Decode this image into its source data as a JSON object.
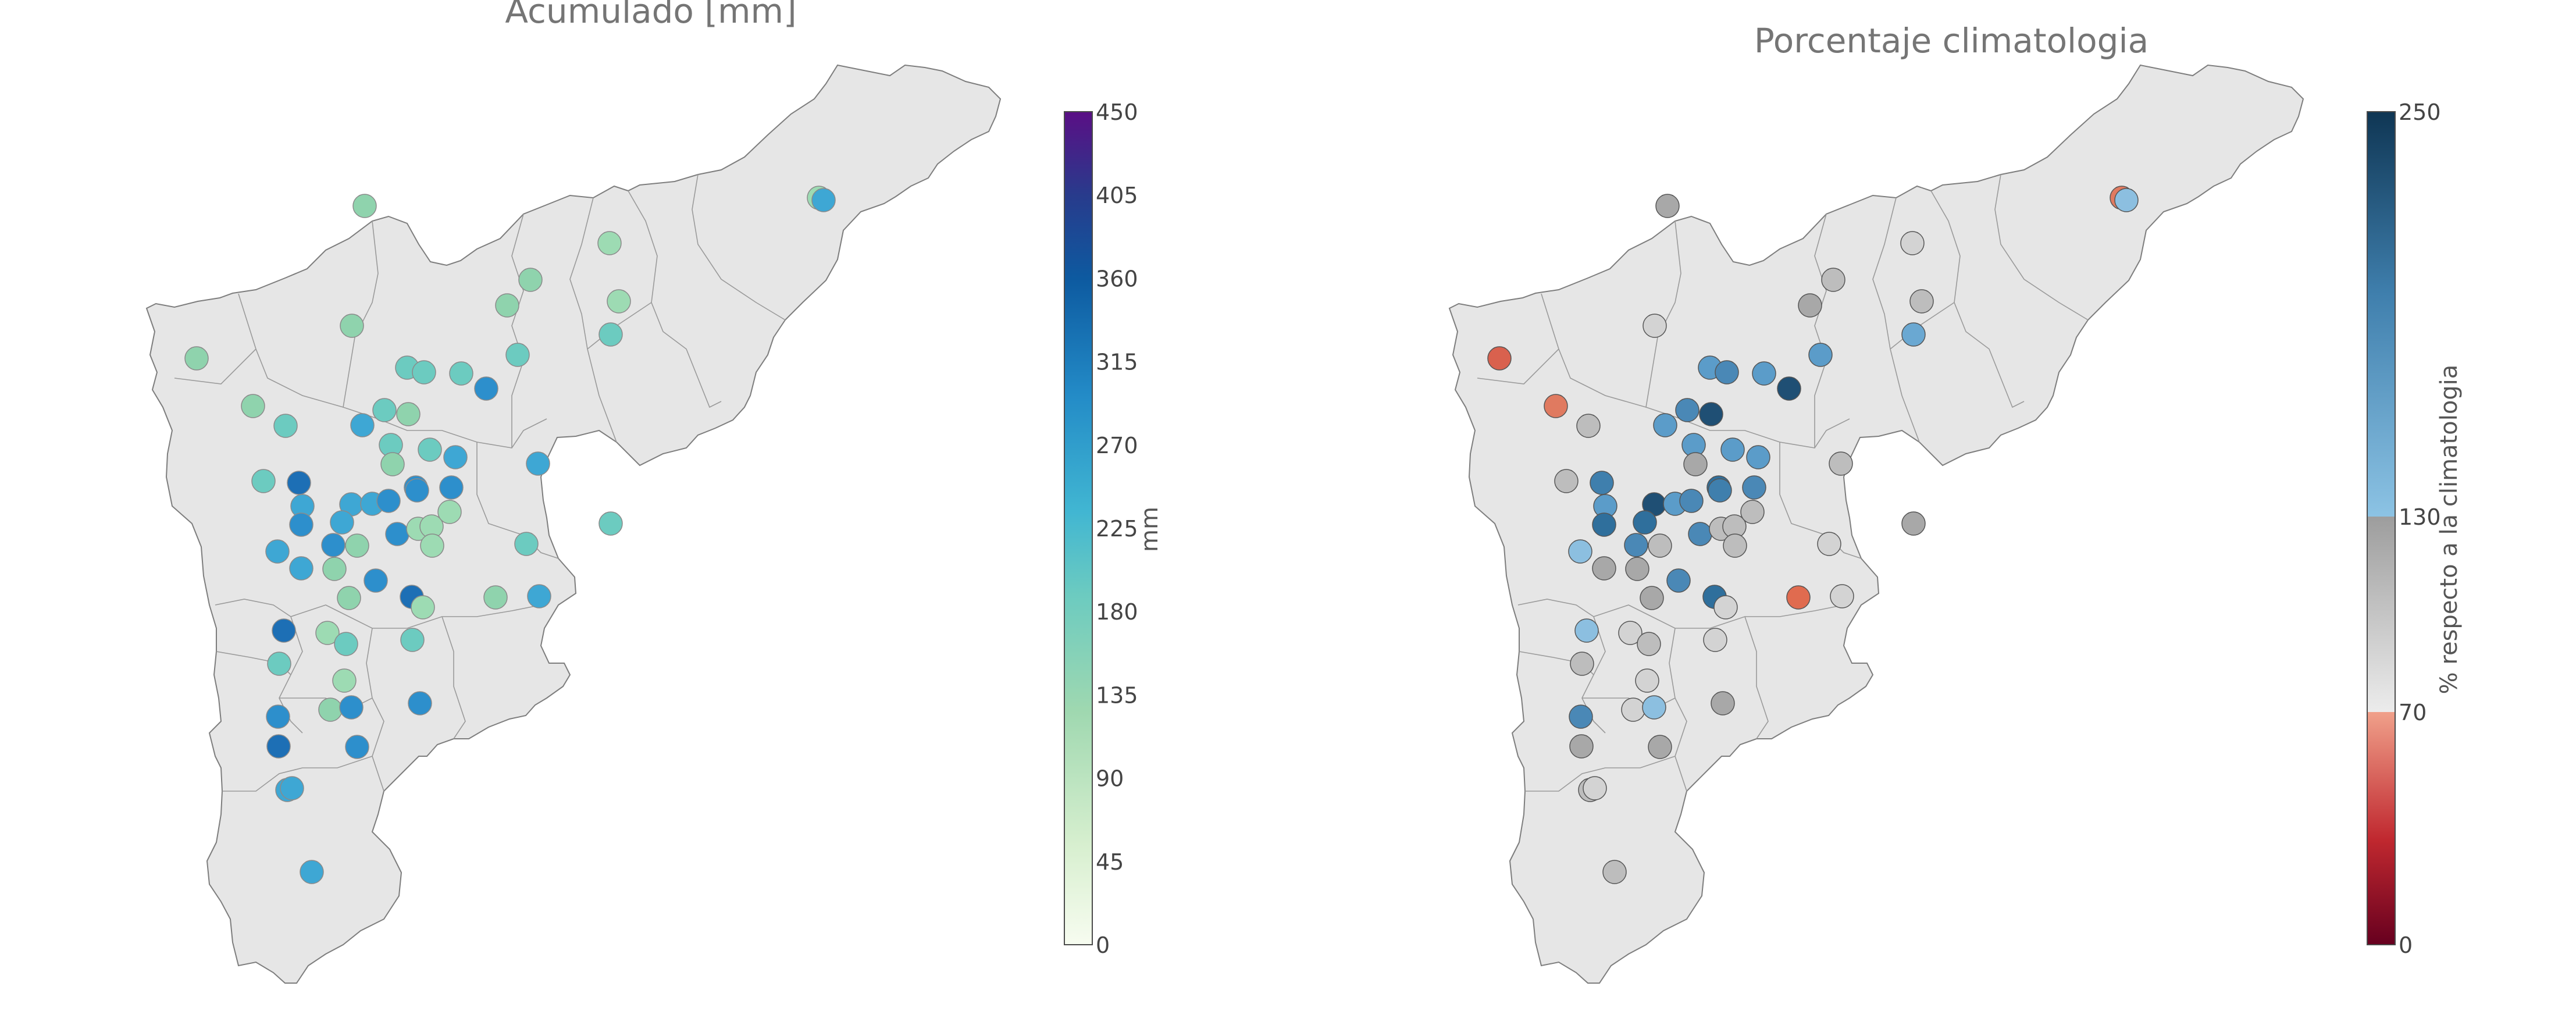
{
  "panels": {
    "left": {
      "title": "Acumulado [mm]"
    },
    "right": {
      "title": "Porcentaje climatologia"
    }
  },
  "colorbars": {
    "left": {
      "label": "mm",
      "ticks": [
        "450",
        "405",
        "360",
        "315",
        "270",
        "225",
        "180",
        "135",
        "90",
        "45",
        "0"
      ],
      "stops": [
        "#e5f5df",
        "#c7e9c0",
        "#a1dab4",
        "#7fcdbb",
        "#41b6c4",
        "#2c9fd1",
        "#1d79bd",
        "#0c4d96",
        "#2c2c88",
        "#6a1b9a"
      ]
    },
    "right": {
      "label": "% respecto a la climatologia",
      "ticks": [
        "250",
        "130",
        "70",
        "0"
      ],
      "segments": [
        {
          "from": 0,
          "to": 70,
          "colors": [
            "#67001f",
            "#d6604d",
            "#f4a582"
          ]
        },
        {
          "from": 70,
          "to": 130,
          "colors": [
            "#e6e6e6",
            "#bdbdbd",
            "#9e9e9e"
          ]
        },
        {
          "from": 130,
          "to": 250,
          "colors": [
            "#92c5de",
            "#4393c3",
            "#14405e"
          ]
        }
      ]
    }
  },
  "legend_colors": {
    "region_fill": "#e6e6e6",
    "region_stroke": "#7d7d7d",
    "title_text": "#757575"
  },
  "stations_legend": {
    "low_pct": "#e06b4f",
    "normal_pct": "#bdbdbd",
    "high_pct": "#3f7fad"
  }
}
